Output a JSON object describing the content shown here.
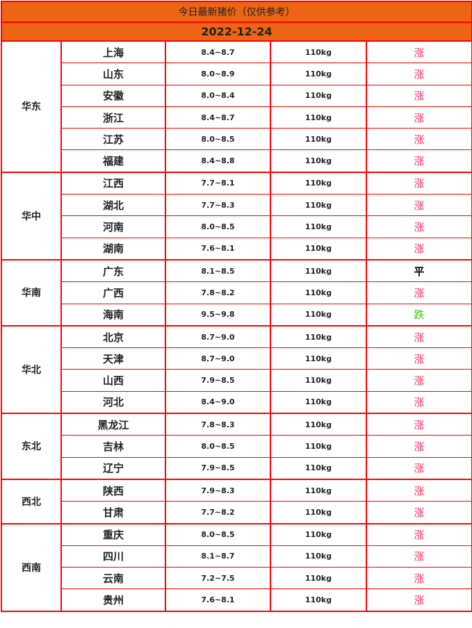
{
  "title": "今日最新猪价（仅供参考）",
  "date": "2022-12-24",
  "colors": {
    "header_bg": "#ec6414",
    "border": "#ff0000",
    "up": "#ff3366",
    "flat": "#000000",
    "down": "#33cc00"
  },
  "regions": [
    {
      "name": "华东",
      "rows": [
        [
          "上海",
          "8.4~8.7",
          "110kg",
          "涨"
        ],
        [
          "山东",
          "8.0~8.9",
          "110kg",
          "涨"
        ],
        [
          "安徽",
          "8.0~8.4",
          "110kg",
          "涨"
        ],
        [
          "浙江",
          "8.4~8.7",
          "110kg",
          "涨"
        ],
        [
          "江苏",
          "8.0~8.5",
          "110kg",
          "涨"
        ],
        [
          "福建",
          "8.4~8.8",
          "110kg",
          "涨"
        ]
      ]
    },
    {
      "name": "华中",
      "rows": [
        [
          "江西",
          "7.7~8.1",
          "110kg",
          "涨"
        ],
        [
          "湖北",
          "7.7~8.3",
          "110kg",
          "涨"
        ],
        [
          "河南",
          "8.0~8.5",
          "110kg",
          "涨"
        ],
        [
          "湖南",
          "7.6~8.1",
          "110kg",
          "涨"
        ]
      ]
    },
    {
      "name": "华南",
      "rows": [
        [
          "广东",
          "8.1~8.5",
          "110kg",
          "平"
        ],
        [
          "广西",
          "7.8~8.2",
          "110kg",
          "涨"
        ],
        [
          "海南",
          "9.5~9.8",
          "110kg",
          "跌"
        ]
      ]
    },
    {
      "name": "华北",
      "rows": [
        [
          "北京",
          "8.7~9.0",
          "110kg",
          "涨"
        ],
        [
          "天津",
          "8.7~9.0",
          "110kg",
          "涨"
        ],
        [
          "山西",
          "7.9~8.5",
          "110kg",
          "涨"
        ],
        [
          "河北",
          "8.4~9.0",
          "110kg",
          "涨"
        ]
      ]
    },
    {
      "name": "东北",
      "rows": [
        [
          "黑龙江",
          "7.8~8.3",
          "110kg",
          "涨"
        ],
        [
          "吉林",
          "8.0~8.5",
          "110kg",
          "涨"
        ],
        [
          "辽宁",
          "7.9~8.5",
          "110kg",
          "涨"
        ]
      ]
    },
    {
      "name": "西北",
      "rows": [
        [
          "陕西",
          "7.9~8.3",
          "110kg",
          "涨"
        ],
        [
          "甘肃",
          "7.7~8.2",
          "110kg",
          "涨"
        ]
      ]
    },
    {
      "name": "西南",
      "rows": [
        [
          "重庆",
          "8.0~8.5",
          "110kg",
          "涨"
        ],
        [
          "四川",
          "8.1~8.7",
          "110kg",
          "涨"
        ],
        [
          "云南",
          "7.2~7.5",
          "110kg",
          "涨"
        ],
        [
          "贵州",
          "7.6~8.1",
          "110kg",
          "涨"
        ]
      ]
    }
  ]
}
